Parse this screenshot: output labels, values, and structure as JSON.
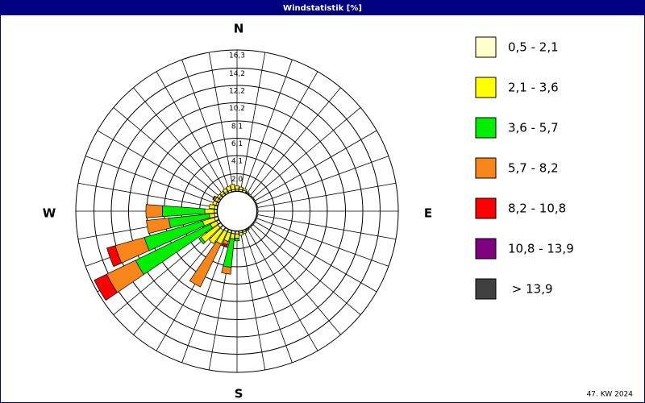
{
  "chart_data": {
    "type": "windrose",
    "title": "Windstatistik [%]",
    "footer": "47. KW 2024",
    "direction_labels": [
      "N",
      "E",
      "S",
      "W"
    ],
    "rlim": [
      0,
      16.3
    ],
    "rticks": [
      {
        "value": 2.0,
        "label": "2,0"
      },
      {
        "value": 4.1,
        "label": "4,1"
      },
      {
        "value": 6.1,
        "label": "6,1"
      },
      {
        "value": 8.1,
        "label": "8,1"
      },
      {
        "value": 10.2,
        "label": "10,2"
      },
      {
        "value": 12.2,
        "label": "12,2"
      },
      {
        "value": 14.2,
        "label": "14,2"
      },
      {
        "value": 16.3,
        "label": "16,3"
      }
    ],
    "series": [
      {
        "name": "0,5 - 2,1",
        "color": "#ffffcc",
        "values": [
          0.2,
          0.2,
          0.2,
          0.1,
          0.1,
          0.1,
          0.1,
          0.1,
          0.1,
          0.1,
          0.1,
          0.1,
          0.1,
          0.1,
          0.1,
          0.1,
          0.2,
          0.2,
          0.3,
          0.3,
          0.3,
          0.3,
          0.4,
          0.4,
          0.3,
          0.4,
          0.3,
          0.3,
          0.3,
          0.2,
          0.2,
          0.2,
          0.2,
          0.2,
          0.2,
          0.2
        ]
      },
      {
        "name": "2,1 - 3,6",
        "color": "#ffff00",
        "values": [
          0.4,
          0.3,
          0.2,
          0.1,
          0,
          0,
          0,
          0,
          0,
          0,
          0,
          0,
          0,
          0,
          0,
          0.1,
          0.2,
          0.3,
          0.5,
          0.6,
          1.0,
          1.6,
          1.9,
          2.4,
          0.8,
          1.4,
          0.6,
          1.1,
          0.6,
          0.4,
          0.3,
          0.3,
          0.3,
          0.4,
          0.5,
          0.6
        ]
      },
      {
        "name": "3,6 - 5,7",
        "color": "#00ee00",
        "values": [
          0,
          0,
          0,
          0,
          0,
          0,
          0,
          0,
          0,
          0,
          0,
          0,
          0,
          0,
          0,
          0,
          0,
          0,
          0.3,
          3.3,
          0,
          0,
          0,
          0.3,
          9.6,
          7.0,
          4.7,
          4.9,
          0,
          0,
          0,
          0,
          0,
          0,
          0,
          0
        ]
      },
      {
        "name": "5,7 - 8,2",
        "color": "#f7861a",
        "values": [
          0,
          0,
          0,
          0,
          0,
          0,
          0,
          0,
          0,
          0,
          0,
          0,
          0,
          0,
          0,
          0,
          0,
          0,
          0,
          0.8,
          0.4,
          5.5,
          0,
          0,
          3.7,
          3.5,
          2.6,
          1.9,
          0,
          0,
          0.2,
          0,
          0,
          0,
          0,
          0
        ]
      },
      {
        "name": "8,2 - 10,8",
        "color": "#ff0000",
        "values": [
          0,
          0,
          0,
          0,
          0,
          0,
          0,
          0,
          0,
          0,
          0,
          0,
          0,
          0,
          0,
          0,
          0,
          0,
          0,
          0,
          0.2,
          0,
          0,
          0,
          1.6,
          1.0,
          0,
          0,
          0,
          0,
          0.1,
          0,
          0,
          0,
          0,
          0
        ]
      },
      {
        "name": "10,8 - 13,9",
        "color": "#800080",
        "values": [
          0,
          0,
          0,
          0,
          0,
          0,
          0,
          0,
          0,
          0,
          0,
          0,
          0,
          0,
          0,
          0,
          0,
          0,
          0,
          0,
          0,
          0,
          0,
          0,
          0,
          0,
          0,
          0,
          0,
          0,
          0,
          0,
          0,
          0,
          0,
          0
        ]
      },
      {
        "name": " > 13,9",
        "color": "#404040",
        "values": [
          0,
          0,
          0,
          0,
          0,
          0,
          0,
          0,
          0,
          0,
          0,
          0,
          0,
          0,
          0,
          0,
          0,
          0,
          0,
          0,
          0,
          0,
          0,
          0,
          0,
          0,
          0,
          0,
          0,
          0,
          0,
          0,
          0,
          0,
          0,
          0
        ]
      }
    ]
  }
}
